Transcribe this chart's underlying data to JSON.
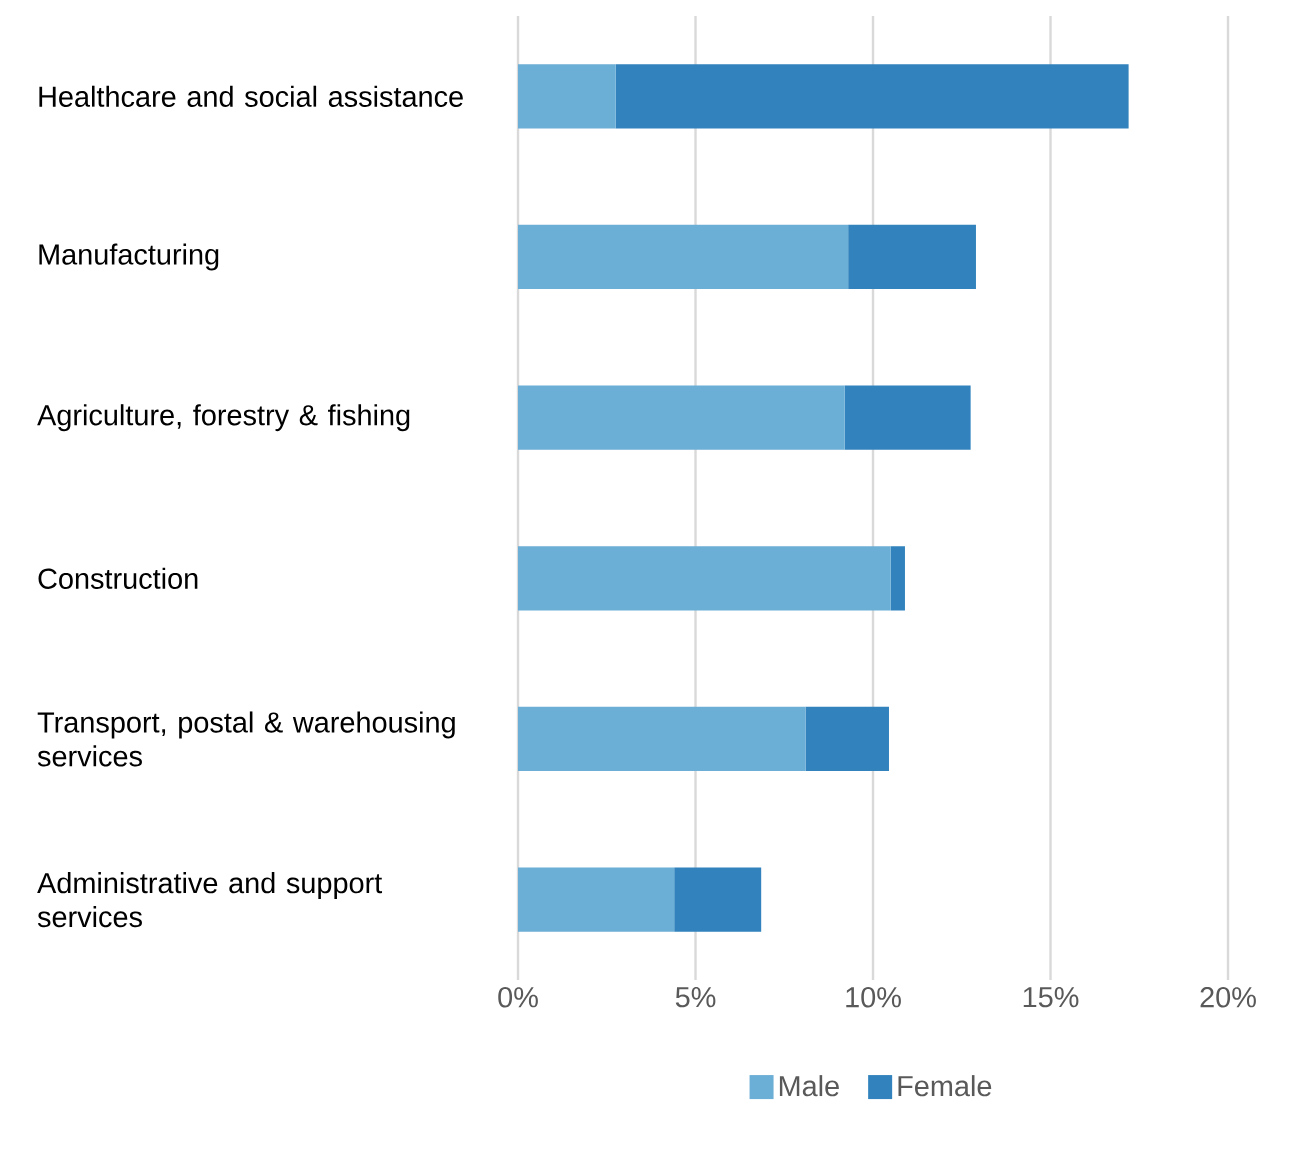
{
  "chart_data": {
    "type": "bar",
    "orientation": "horizontal",
    "stacked": true,
    "categories": [
      "Healthcare and social assistance",
      "Manufacturing",
      "Agriculture, forestry & fishing",
      "Construction",
      "Transport, postal & warehousing services",
      "Administrative and support services"
    ],
    "series": [
      {
        "name": "Male",
        "color": "#6baed6",
        "values": [
          2.75,
          9.3,
          9.2,
          10.5,
          8.1,
          4.4
        ]
      },
      {
        "name": "Female",
        "color": "#3182bd",
        "values": [
          14.45,
          3.6,
          3.55,
          0.4,
          2.35,
          2.45
        ]
      }
    ],
    "xlim": [
      0,
      20
    ],
    "xticks": [
      {
        "value": 0,
        "label": "0%"
      },
      {
        "value": 5,
        "label": "5%"
      },
      {
        "value": 10,
        "label": "10%"
      },
      {
        "value": 15,
        "label": "15%"
      },
      {
        "value": 20,
        "label": "20%"
      }
    ],
    "grid": "x",
    "legend": "bottom"
  }
}
